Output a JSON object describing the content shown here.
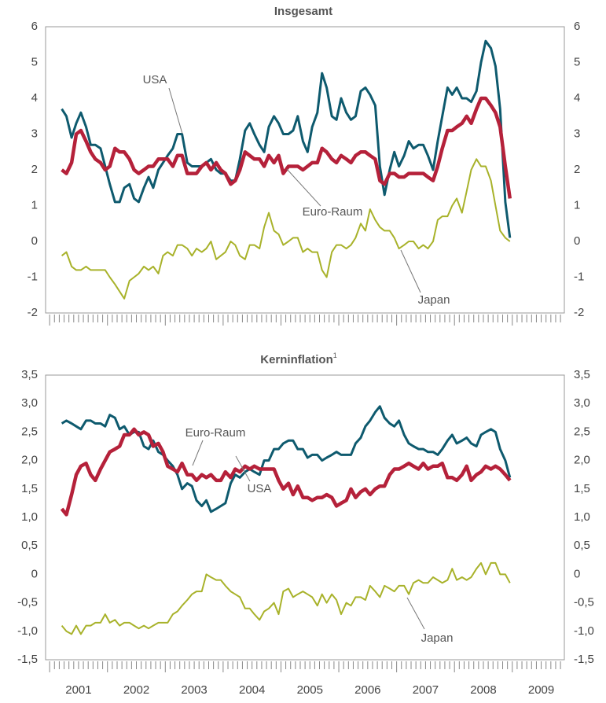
{
  "chart_data": [
    {
      "type": "line",
      "title": "Insgesamt",
      "x": [
        2001.21,
        2001.29,
        2001.38,
        2001.46,
        2001.54,
        2001.63,
        2001.71,
        2001.79,
        2001.88,
        2001.96,
        2002.04,
        2002.13,
        2002.21,
        2002.29,
        2002.38,
        2002.46,
        2002.54,
        2002.63,
        2002.71,
        2002.79,
        2002.88,
        2002.96,
        2003.04,
        2003.13,
        2003.21,
        2003.29,
        2003.38,
        2003.46,
        2003.54,
        2003.63,
        2003.71,
        2003.79,
        2003.88,
        2003.96,
        2004.04,
        2004.13,
        2004.21,
        2004.29,
        2004.38,
        2004.46,
        2004.54,
        2004.63,
        2004.71,
        2004.79,
        2004.88,
        2004.96,
        2005.04,
        2005.13,
        2005.21,
        2005.29,
        2005.38,
        2005.46,
        2005.54,
        2005.63,
        2005.71,
        2005.79,
        2005.88,
        2005.96,
        2006.04,
        2006.13,
        2006.21,
        2006.29,
        2006.38,
        2006.46,
        2006.54,
        2006.63,
        2006.71,
        2006.79,
        2006.88,
        2006.96,
        2007.04,
        2007.13,
        2007.21,
        2007.29,
        2007.38,
        2007.46,
        2007.54,
        2007.63,
        2007.71,
        2007.79,
        2007.88,
        2007.96,
        2008.04,
        2008.13,
        2008.21,
        2008.29,
        2008.38,
        2008.46,
        2008.54,
        2008.63,
        2008.71,
        2008.79,
        2008.88,
        2008.96
      ],
      "series": [
        {
          "name": "USA",
          "color": "#0e5a6e",
          "values": [
            3.7,
            3.5,
            2.9,
            3.3,
            3.6,
            3.2,
            2.7,
            2.7,
            2.6,
            2.1,
            1.6,
            1.1,
            1.1,
            1.5,
            1.6,
            1.2,
            1.1,
            1.5,
            1.8,
            1.5,
            2.0,
            2.2,
            2.4,
            2.6,
            3.0,
            3.0,
            2.2,
            2.1,
            2.1,
            2.1,
            2.2,
            2.3,
            2.0,
            1.9,
            1.9,
            1.7,
            1.7,
            2.3,
            3.1,
            3.3,
            3.0,
            2.7,
            2.5,
            3.2,
            3.5,
            3.3,
            3.0,
            3.0,
            3.1,
            3.5,
            2.8,
            2.5,
            3.2,
            3.6,
            4.7,
            4.3,
            3.5,
            3.4,
            4.0,
            3.6,
            3.4,
            3.5,
            4.2,
            4.3,
            4.1,
            3.8,
            2.1,
            1.3,
            2.0,
            2.5,
            2.1,
            2.4,
            2.8,
            2.6,
            2.7,
            2.7,
            2.4,
            2.0,
            2.8,
            3.5,
            4.3,
            4.1,
            4.3,
            4.0,
            4.0,
            3.9,
            4.2,
            5.0,
            5.6,
            5.4,
            4.9,
            3.7,
            1.1,
            0.1
          ]
        },
        {
          "name": "Euro-Raum",
          "color": "#b5213a",
          "values": [
            2.0,
            1.9,
            2.2,
            3.0,
            3.1,
            2.8,
            2.5,
            2.3,
            2.2,
            2.0,
            2.1,
            2.6,
            2.5,
            2.5,
            2.3,
            2.0,
            1.9,
            2.0,
            2.1,
            2.1,
            2.3,
            2.3,
            2.3,
            2.1,
            2.4,
            2.4,
            1.9,
            1.9,
            1.9,
            2.1,
            2.2,
            2.0,
            2.2,
            2.0,
            1.9,
            1.6,
            1.7,
            2.0,
            2.5,
            2.4,
            2.3,
            2.3,
            2.1,
            2.4,
            2.2,
            2.4,
            1.9,
            2.1,
            2.1,
            2.1,
            2.0,
            2.1,
            2.2,
            2.2,
            2.6,
            2.5,
            2.3,
            2.2,
            2.4,
            2.3,
            2.2,
            2.4,
            2.5,
            2.5,
            2.4,
            2.3,
            1.7,
            1.6,
            1.9,
            1.9,
            1.8,
            1.8,
            1.9,
            1.9,
            1.9,
            1.9,
            1.8,
            1.7,
            2.1,
            2.6,
            3.1,
            3.1,
            3.2,
            3.3,
            3.5,
            3.3,
            3.7,
            4.0,
            4.0,
            3.8,
            3.6,
            3.2,
            2.1,
            1.2
          ]
        },
        {
          "name": "Japan",
          "color": "#a8b22a",
          "values": [
            -0.4,
            -0.3,
            -0.7,
            -0.8,
            -0.8,
            -0.7,
            -0.8,
            -0.8,
            -0.8,
            -0.8,
            -1.0,
            -1.2,
            -1.4,
            -1.6,
            -1.1,
            -1.0,
            -0.9,
            -0.7,
            -0.8,
            -0.7,
            -0.9,
            -0.4,
            -0.3,
            -0.4,
            -0.1,
            -0.1,
            -0.2,
            -0.4,
            -0.2,
            -0.3,
            -0.2,
            0.0,
            -0.5,
            -0.4,
            -0.3,
            0.0,
            -0.1,
            -0.4,
            -0.5,
            -0.1,
            -0.1,
            -0.2,
            0.4,
            0.8,
            0.3,
            0.2,
            -0.1,
            0.0,
            0.1,
            0.1,
            -0.3,
            -0.2,
            -0.3,
            -0.3,
            -0.8,
            -1.0,
            -0.3,
            -0.1,
            -0.1,
            -0.2,
            -0.1,
            0.1,
            0.5,
            0.3,
            0.9,
            0.6,
            0.4,
            0.3,
            0.3,
            0.1,
            -0.2,
            -0.1,
            0.0,
            0.0,
            -0.2,
            -0.1,
            -0.2,
            0.0,
            0.6,
            0.7,
            0.7,
            1.0,
            1.2,
            0.8,
            1.4,
            2.0,
            2.3,
            2.1,
            2.1,
            1.7,
            1.0,
            0.3,
            0.1,
            0.0
          ]
        }
      ],
      "annotations": [
        "USA",
        "Euro-Raum",
        "Japan"
      ],
      "xlim": [
        2000.93,
        2009.9
      ],
      "ylim": [
        -2,
        6
      ],
      "yticks": [
        -2,
        -1,
        0,
        1,
        2,
        3,
        4,
        5,
        6
      ]
    },
    {
      "type": "line",
      "title": "Kerninflation",
      "title_footnote": "1",
      "x": [
        2001.21,
        2001.29,
        2001.38,
        2001.46,
        2001.54,
        2001.63,
        2001.71,
        2001.79,
        2001.88,
        2001.96,
        2002.04,
        2002.13,
        2002.21,
        2002.29,
        2002.38,
        2002.46,
        2002.54,
        2002.63,
        2002.71,
        2002.79,
        2002.88,
        2002.96,
        2003.04,
        2003.13,
        2003.21,
        2003.29,
        2003.38,
        2003.46,
        2003.54,
        2003.63,
        2003.71,
        2003.79,
        2003.88,
        2003.96,
        2004.04,
        2004.13,
        2004.21,
        2004.29,
        2004.38,
        2004.46,
        2004.54,
        2004.63,
        2004.71,
        2004.79,
        2004.88,
        2004.96,
        2005.04,
        2005.13,
        2005.21,
        2005.29,
        2005.38,
        2005.46,
        2005.54,
        2005.63,
        2005.71,
        2005.79,
        2005.88,
        2005.96,
        2006.04,
        2006.13,
        2006.21,
        2006.29,
        2006.38,
        2006.46,
        2006.54,
        2006.63,
        2006.71,
        2006.79,
        2006.88,
        2006.96,
        2007.04,
        2007.13,
        2007.21,
        2007.29,
        2007.38,
        2007.46,
        2007.54,
        2007.63,
        2007.71,
        2007.79,
        2007.88,
        2007.96,
        2008.04,
        2008.13,
        2008.21,
        2008.29,
        2008.38,
        2008.46,
        2008.54,
        2008.63,
        2008.71,
        2008.79,
        2008.88,
        2008.96
      ],
      "series": [
        {
          "name": "USA",
          "color": "#0e5a6e",
          "values": [
            2.65,
            2.7,
            2.65,
            2.6,
            2.55,
            2.7,
            2.7,
            2.65,
            2.65,
            2.6,
            2.8,
            2.75,
            2.55,
            2.6,
            2.45,
            2.5,
            2.5,
            2.25,
            2.2,
            2.35,
            2.15,
            2.1,
            2.0,
            1.9,
            1.75,
            1.5,
            1.6,
            1.55,
            1.3,
            1.2,
            1.3,
            1.1,
            1.15,
            1.2,
            1.25,
            1.6,
            1.75,
            1.7,
            1.8,
            1.85,
            1.8,
            1.75,
            2.0,
            2.0,
            2.2,
            2.2,
            2.3,
            2.35,
            2.35,
            2.2,
            2.2,
            2.05,
            2.1,
            2.1,
            2.0,
            2.05,
            2.1,
            2.15,
            2.1,
            2.1,
            2.1,
            2.3,
            2.4,
            2.6,
            2.7,
            2.85,
            2.95,
            2.75,
            2.65,
            2.6,
            2.7,
            2.45,
            2.3,
            2.25,
            2.2,
            2.2,
            2.15,
            2.15,
            2.1,
            2.2,
            2.35,
            2.45,
            2.3,
            2.35,
            2.4,
            2.3,
            2.25,
            2.45,
            2.5,
            2.55,
            2.5,
            2.2,
            2.0,
            1.7
          ]
        },
        {
          "name": "Euro-Raum",
          "color": "#b5213a",
          "values": [
            1.15,
            1.05,
            1.4,
            1.75,
            1.9,
            1.95,
            1.75,
            1.65,
            1.85,
            2.0,
            2.15,
            2.2,
            2.25,
            2.45,
            2.45,
            2.55,
            2.45,
            2.5,
            2.45,
            2.25,
            2.3,
            2.15,
            1.9,
            1.85,
            1.8,
            1.95,
            1.75,
            1.75,
            1.65,
            1.75,
            1.7,
            1.75,
            1.65,
            1.65,
            1.8,
            1.7,
            1.85,
            1.8,
            1.9,
            1.85,
            1.9,
            1.85,
            1.85,
            1.85,
            1.85,
            1.65,
            1.5,
            1.6,
            1.4,
            1.55,
            1.35,
            1.35,
            1.3,
            1.35,
            1.35,
            1.4,
            1.35,
            1.2,
            1.25,
            1.3,
            1.5,
            1.35,
            1.45,
            1.5,
            1.4,
            1.5,
            1.55,
            1.55,
            1.75,
            1.85,
            1.85,
            1.9,
            1.95,
            1.9,
            1.85,
            1.95,
            1.85,
            1.9,
            1.9,
            1.95,
            1.7,
            1.7,
            1.65,
            1.75,
            1.9,
            1.65,
            1.75,
            1.8,
            1.9,
            1.85,
            1.9,
            1.85,
            1.75,
            1.65
          ]
        },
        {
          "name": "Japan",
          "color": "#a8b22a",
          "values": [
            -0.9,
            -1.0,
            -1.05,
            -0.9,
            -1.05,
            -0.9,
            -0.9,
            -0.85,
            -0.85,
            -0.7,
            -0.85,
            -0.8,
            -0.9,
            -0.85,
            -0.85,
            -0.9,
            -0.95,
            -0.9,
            -0.95,
            -0.9,
            -0.85,
            -0.85,
            -0.85,
            -0.7,
            -0.65,
            -0.55,
            -0.45,
            -0.35,
            -0.3,
            -0.3,
            0.0,
            -0.05,
            -0.1,
            -0.1,
            -0.2,
            -0.3,
            -0.35,
            -0.4,
            -0.6,
            -0.6,
            -0.7,
            -0.8,
            -0.65,
            -0.6,
            -0.5,
            -0.7,
            -0.3,
            -0.25,
            -0.4,
            -0.35,
            -0.3,
            -0.35,
            -0.4,
            -0.55,
            -0.35,
            -0.5,
            -0.35,
            -0.45,
            -0.7,
            -0.5,
            -0.55,
            -0.4,
            -0.4,
            -0.45,
            -0.2,
            -0.3,
            -0.4,
            -0.2,
            -0.25,
            -0.3,
            -0.2,
            -0.2,
            -0.35,
            -0.15,
            -0.1,
            -0.15,
            -0.15,
            -0.05,
            -0.1,
            -0.15,
            -0.1,
            0.1,
            -0.1,
            -0.05,
            -0.1,
            -0.05,
            0.1,
            0.2,
            0.0,
            0.2,
            0.2,
            0.0,
            0.0,
            -0.15
          ]
        }
      ],
      "annotations": [
        "Euro-Raum",
        "USA",
        "Japan"
      ],
      "xlim": [
        2000.93,
        2009.9
      ],
      "xticks": [
        {
          "value": 2001.5,
          "label": "2001"
        },
        {
          "value": 2002.5,
          "label": "2002"
        },
        {
          "value": 2003.5,
          "label": "2003"
        },
        {
          "value": 2004.5,
          "label": "2004"
        },
        {
          "value": 2005.5,
          "label": "2005"
        },
        {
          "value": 2006.5,
          "label": "2006"
        },
        {
          "value": 2007.5,
          "label": "2007"
        },
        {
          "value": 2008.5,
          "label": "2008"
        },
        {
          "value": 2009.5,
          "label": "2009"
        }
      ],
      "ylim": [
        -1.5,
        3.5
      ],
      "yticks": [
        {
          "value": -1.5,
          "label": "-1,5"
        },
        {
          "value": -1,
          "label": "-1,0"
        },
        {
          "value": -0.5,
          "label": "-0,5"
        },
        0,
        {
          "value": 0.5,
          "label": "0,5"
        },
        {
          "value": 1,
          "label": "1,0"
        },
        {
          "value": 1.5,
          "label": "1,5"
        },
        {
          "value": 2,
          "label": "2,0"
        },
        {
          "value": 2.5,
          "label": "2,5"
        },
        {
          "value": 3,
          "label": "3,0"
        },
        {
          "value": 3.5,
          "label": "3,5"
        }
      ]
    }
  ]
}
